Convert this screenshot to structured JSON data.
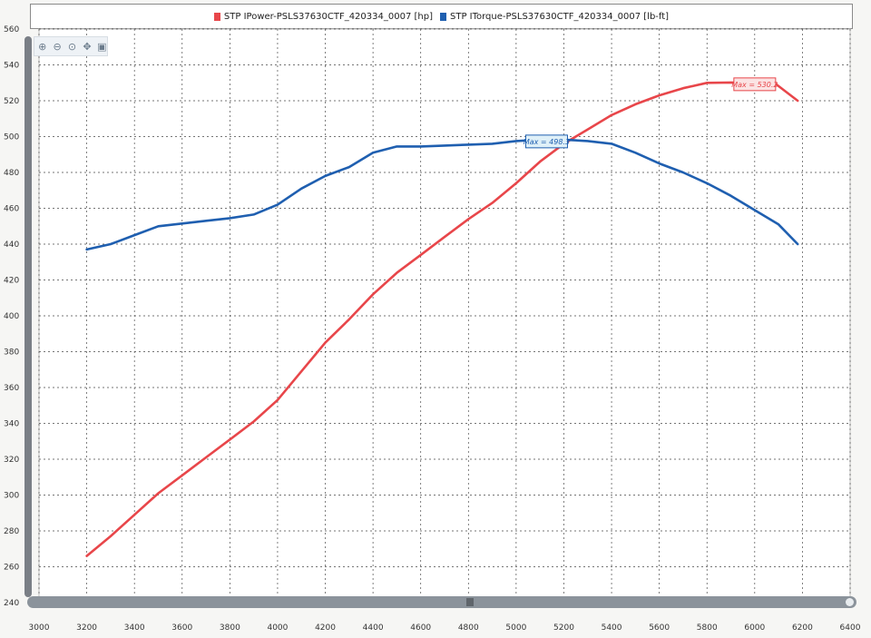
{
  "legend": {
    "items": [
      {
        "label": "STP IPower-PSLS37630CTF_420334_0007 [hp]",
        "color": "#e8464a"
      },
      {
        "label": "STP ITorque-PSLS37630CTF_420334_0007 [lb-ft]",
        "color": "#1f5fb0"
      }
    ]
  },
  "toolbar": {
    "icons": [
      "zoom-in-icon",
      "zoom-out-icon",
      "zoom-reset-icon",
      "pan-icon",
      "zoom-box-icon"
    ]
  },
  "chart_data": {
    "type": "line",
    "xlabel": "",
    "ylabel": "",
    "xlim": [
      3000,
      6400
    ],
    "ylim": [
      240,
      560
    ],
    "x_ticks": [
      3000,
      3200,
      3400,
      3600,
      3800,
      4000,
      4200,
      4400,
      4600,
      4800,
      5000,
      5200,
      5400,
      5600,
      5800,
      6000,
      6200,
      6400
    ],
    "y_ticks": [
      240,
      260,
      280,
      300,
      320,
      340,
      360,
      380,
      400,
      420,
      440,
      460,
      480,
      500,
      520,
      540,
      560
    ],
    "grid": true,
    "legend_position": "top",
    "series": [
      {
        "name": "STP IPower-PSLS37630CTF_420334_0007 [hp]",
        "color": "#e8464a",
        "x": [
          3200,
          3300,
          3400,
          3500,
          3600,
          3700,
          3800,
          3900,
          4000,
          4100,
          4200,
          4300,
          4400,
          4500,
          4600,
          4700,
          4800,
          4900,
          5000,
          5100,
          5200,
          5300,
          5400,
          5500,
          5600,
          5700,
          5800,
          5900,
          6000,
          6080,
          6180
        ],
        "y": [
          266,
          277,
          289,
          301,
          311,
          321,
          331,
          341,
          353,
          369,
          385,
          398,
          412,
          424,
          434,
          444,
          454,
          463,
          474,
          486,
          496,
          504,
          512,
          518,
          523,
          527,
          530,
          530.2,
          530,
          530.2,
          520
        ]
      },
      {
        "name": "STP ITorque-PSLS37630CTF_420334_0007 [lb-ft]",
        "color": "#1f5fb0",
        "x": [
          3200,
          3300,
          3400,
          3500,
          3600,
          3700,
          3800,
          3900,
          4000,
          4100,
          4200,
          4300,
          4400,
          4500,
          4600,
          4700,
          4800,
          4900,
          5000,
          5100,
          5200,
          5300,
          5400,
          5500,
          5600,
          5700,
          5800,
          5900,
          6000,
          6100,
          6180
        ],
        "y": [
          437,
          440,
          445,
          450,
          451.5,
          453,
          454.5,
          456.5,
          462,
          471,
          478,
          483,
          491,
          494.5,
          494.5,
          495,
          495.5,
          496,
          497.5,
          498.3,
          498.3,
          497.5,
          496,
          491,
          485,
          480,
          474,
          467,
          459,
          451,
          440
        ]
      }
    ],
    "annotations": [
      {
        "text": "Max = 530.2",
        "series": 0,
        "x": 6080,
        "y": 530.2,
        "color": "#e8464a"
      },
      {
        "text": "Max = 498.3",
        "series": 1,
        "x": 5200,
        "y": 498.3,
        "color": "#1f5fb0"
      }
    ]
  }
}
